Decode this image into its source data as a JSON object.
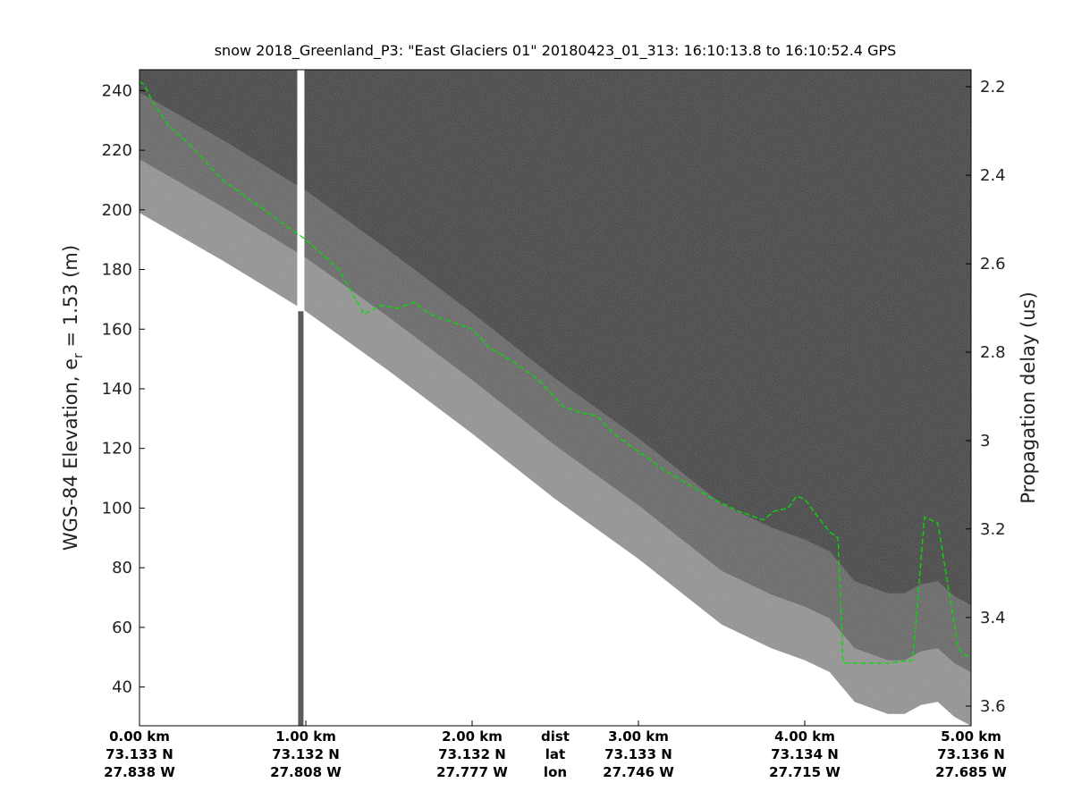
{
  "chart_data": {
    "type": "image",
    "title": "snow 2018_Greenland_P3: \"East Glaciers 01\"  20180423_01_313: 16:10:13.8 to 16:10:52.4 GPS",
    "ylabel_left": {
      "main": "WGS-84 Elevation, e",
      "sub": "r",
      "tail": " = 1.53 (m)"
    },
    "ylabel_right": "Propagation delay (us)",
    "xlim_km": [
      0,
      5
    ],
    "ylim_left": [
      27,
      247
    ],
    "yticks_left": [
      40,
      60,
      80,
      100,
      120,
      140,
      160,
      180,
      200,
      220,
      240
    ],
    "right_ticks": [
      {
        "label": "2.2",
        "elev": 241.3
      },
      {
        "label": "2.4",
        "elev": 211.6
      },
      {
        "label": "2.6",
        "elev": 181.9
      },
      {
        "label": "2.8",
        "elev": 152.3
      },
      {
        "label": "3",
        "elev": 122.6
      },
      {
        "label": "3.2",
        "elev": 93.0
      },
      {
        "label": "3.4",
        "elev": 63.3
      },
      {
        "label": "3.6",
        "elev": 33.6
      }
    ],
    "bottom_ticks": [
      {
        "km": 0,
        "dist": "0.00 km",
        "lat": "73.133 N",
        "lon": "27.838 W"
      },
      {
        "km": 1,
        "dist": "1.00 km",
        "lat": "73.132 N",
        "lon": "27.808 W"
      },
      {
        "km": 2,
        "dist": "2.00 km",
        "lat": "73.132 N",
        "lon": "27.777 W"
      },
      {
        "km": 3,
        "dist": "3.00 km",
        "lat": "73.133 N",
        "lon": "27.746 W"
      },
      {
        "km": 4,
        "dist": "4.00 km",
        "lat": "73.134 N",
        "lon": "27.715 W"
      },
      {
        "km": 5,
        "dist": "5.00 km",
        "lat": "73.136 N",
        "lon": "27.685 W"
      }
    ],
    "bottom_row_headers": [
      "dist",
      "lat",
      "lon"
    ],
    "surface_layer": {
      "name": "",
      "color": "#00e000",
      "x_km": [
        0,
        0.03,
        0.08,
        0.18,
        0.3,
        0.5,
        0.75,
        1.0,
        1.2,
        1.35,
        1.45,
        1.55,
        1.65,
        1.75,
        1.85,
        2.0,
        2.1,
        2.25,
        2.4,
        2.55,
        2.65,
        2.75,
        2.85,
        3.0,
        3.15,
        3.3,
        3.45,
        3.6,
        3.75,
        3.82,
        3.9,
        3.95,
        4.0,
        4.08,
        4.15,
        4.2,
        4.23,
        4.3,
        4.5,
        4.65,
        4.72,
        4.8,
        4.92,
        4.95,
        5.0
      ],
      "elev": [
        243,
        242,
        236,
        228,
        222,
        210,
        200,
        190,
        180,
        165,
        168,
        167,
        169,
        165,
        163,
        160,
        154,
        149,
        143,
        134,
        132,
        131,
        125,
        119,
        113,
        108,
        103,
        99,
        96,
        99,
        100,
        104,
        103,
        97,
        92,
        90,
        48,
        48,
        48,
        49,
        97,
        95,
        54,
        51,
        50
      ]
    },
    "ice_edge": {
      "x_km": [
        0,
        0.5,
        1.0,
        1.5,
        2.0,
        2.5,
        3.0,
        3.5,
        3.8,
        4.0,
        4.15,
        4.3,
        4.5,
        4.6,
        4.7,
        4.8,
        4.9,
        5.0
      ],
      "elev": [
        199,
        183,
        166,
        146,
        125,
        103,
        83,
        61,
        53,
        49,
        45,
        35,
        31,
        31,
        34,
        35,
        30,
        27
      ]
    },
    "gap_column_km": 0.97,
    "grid": false,
    "legend": "none"
  }
}
